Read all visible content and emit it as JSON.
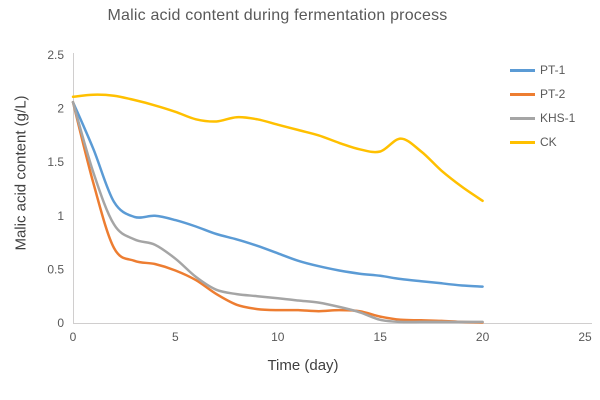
{
  "chart_data": {
    "type": "line",
    "title": "Malic acid content during fermentation process",
    "xlabel": "Time (day)",
    "ylabel": "Malic acid content (g/L)",
    "xlim": [
      0,
      25
    ],
    "ylim": [
      0,
      2.5
    ],
    "x_ticks": [
      0,
      5,
      10,
      15,
      20,
      25
    ],
    "x_tick_labels": [
      "0",
      "5",
      "10",
      "15",
      "20",
      "25"
    ],
    "y_ticks": [
      0,
      0.5,
      1,
      1.5,
      2,
      2.5
    ],
    "y_tick_labels": [
      "0",
      "0.5",
      "1",
      "1.5",
      "2",
      "2.5"
    ],
    "grid": false,
    "smoothed_lines": true,
    "legend_position": "right",
    "axis_color": "#D0CECE",
    "tick_label_color": "#595959",
    "x": [
      0,
      1,
      2,
      3,
      4,
      5,
      6,
      7,
      8,
      9,
      10,
      11,
      12,
      13,
      14,
      15,
      16,
      17,
      18,
      19,
      20
    ],
    "series": [
      {
        "name": "PT-1",
        "color": "#5B9BD5",
        "values": [
          2.06,
          1.62,
          1.13,
          0.99,
          1.0,
          0.96,
          0.9,
          0.83,
          0.78,
          0.72,
          0.65,
          0.58,
          0.53,
          0.49,
          0.46,
          0.44,
          0.41,
          0.39,
          0.37,
          0.35,
          0.34
        ]
      },
      {
        "name": "PT-2",
        "color": "#ED7D31",
        "values": [
          2.06,
          1.3,
          0.7,
          0.58,
          0.55,
          0.49,
          0.4,
          0.27,
          0.17,
          0.13,
          0.12,
          0.12,
          0.11,
          0.12,
          0.11,
          0.06,
          0.03,
          0.025,
          0.02,
          0.01,
          0.005
        ]
      },
      {
        "name": "KHS-1",
        "color": "#A5A5A5",
        "values": [
          2.06,
          1.4,
          0.92,
          0.78,
          0.73,
          0.6,
          0.43,
          0.31,
          0.27,
          0.25,
          0.23,
          0.21,
          0.19,
          0.15,
          0.1,
          0.03,
          0.01,
          0.01,
          0.01,
          0.01,
          0.01
        ]
      },
      {
        "name": "CK",
        "color": "#FFC000",
        "values": [
          2.11,
          2.13,
          2.12,
          2.08,
          2.03,
          1.97,
          1.9,
          1.88,
          1.92,
          1.9,
          1.85,
          1.8,
          1.75,
          1.68,
          1.62,
          1.6,
          1.72,
          1.6,
          1.42,
          1.27,
          1.14
        ]
      }
    ]
  }
}
